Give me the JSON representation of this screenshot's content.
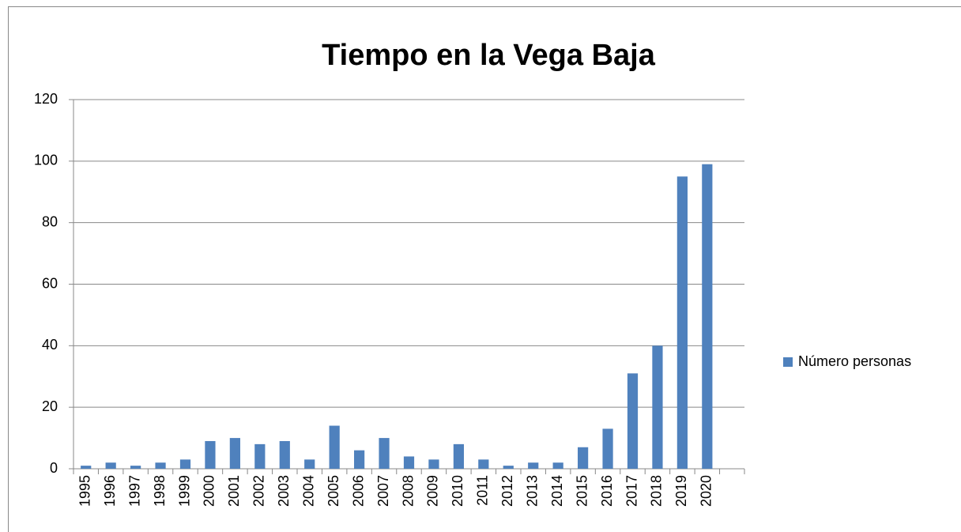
{
  "chart_data": {
    "type": "bar",
    "title": "Tiempo en la Vega Baja",
    "categories": [
      "1995",
      "1996",
      "1997",
      "1998",
      "1999",
      "2000",
      "2001",
      "2002",
      "2003",
      "2004",
      "2005",
      "2006",
      "2007",
      "2008",
      "2009",
      "2010",
      "2011",
      "2012",
      "2013",
      "2014",
      "2015",
      "2016",
      "2017",
      "2018",
      "2019",
      "2020",
      null
    ],
    "series": [
      {
        "name": "Número personas",
        "color": "#4f81bd",
        "values": [
          1,
          2,
          1,
          2,
          3,
          9,
          10,
          8,
          9,
          3,
          14,
          6,
          10,
          4,
          3,
          8,
          3,
          1,
          2,
          2,
          7,
          13,
          31,
          40,
          95,
          99,
          null
        ]
      }
    ],
    "ylim": [
      0,
      120
    ],
    "yticks": [
      0,
      20,
      40,
      60,
      80,
      100,
      120
    ],
    "grid": true,
    "legend": "right"
  }
}
